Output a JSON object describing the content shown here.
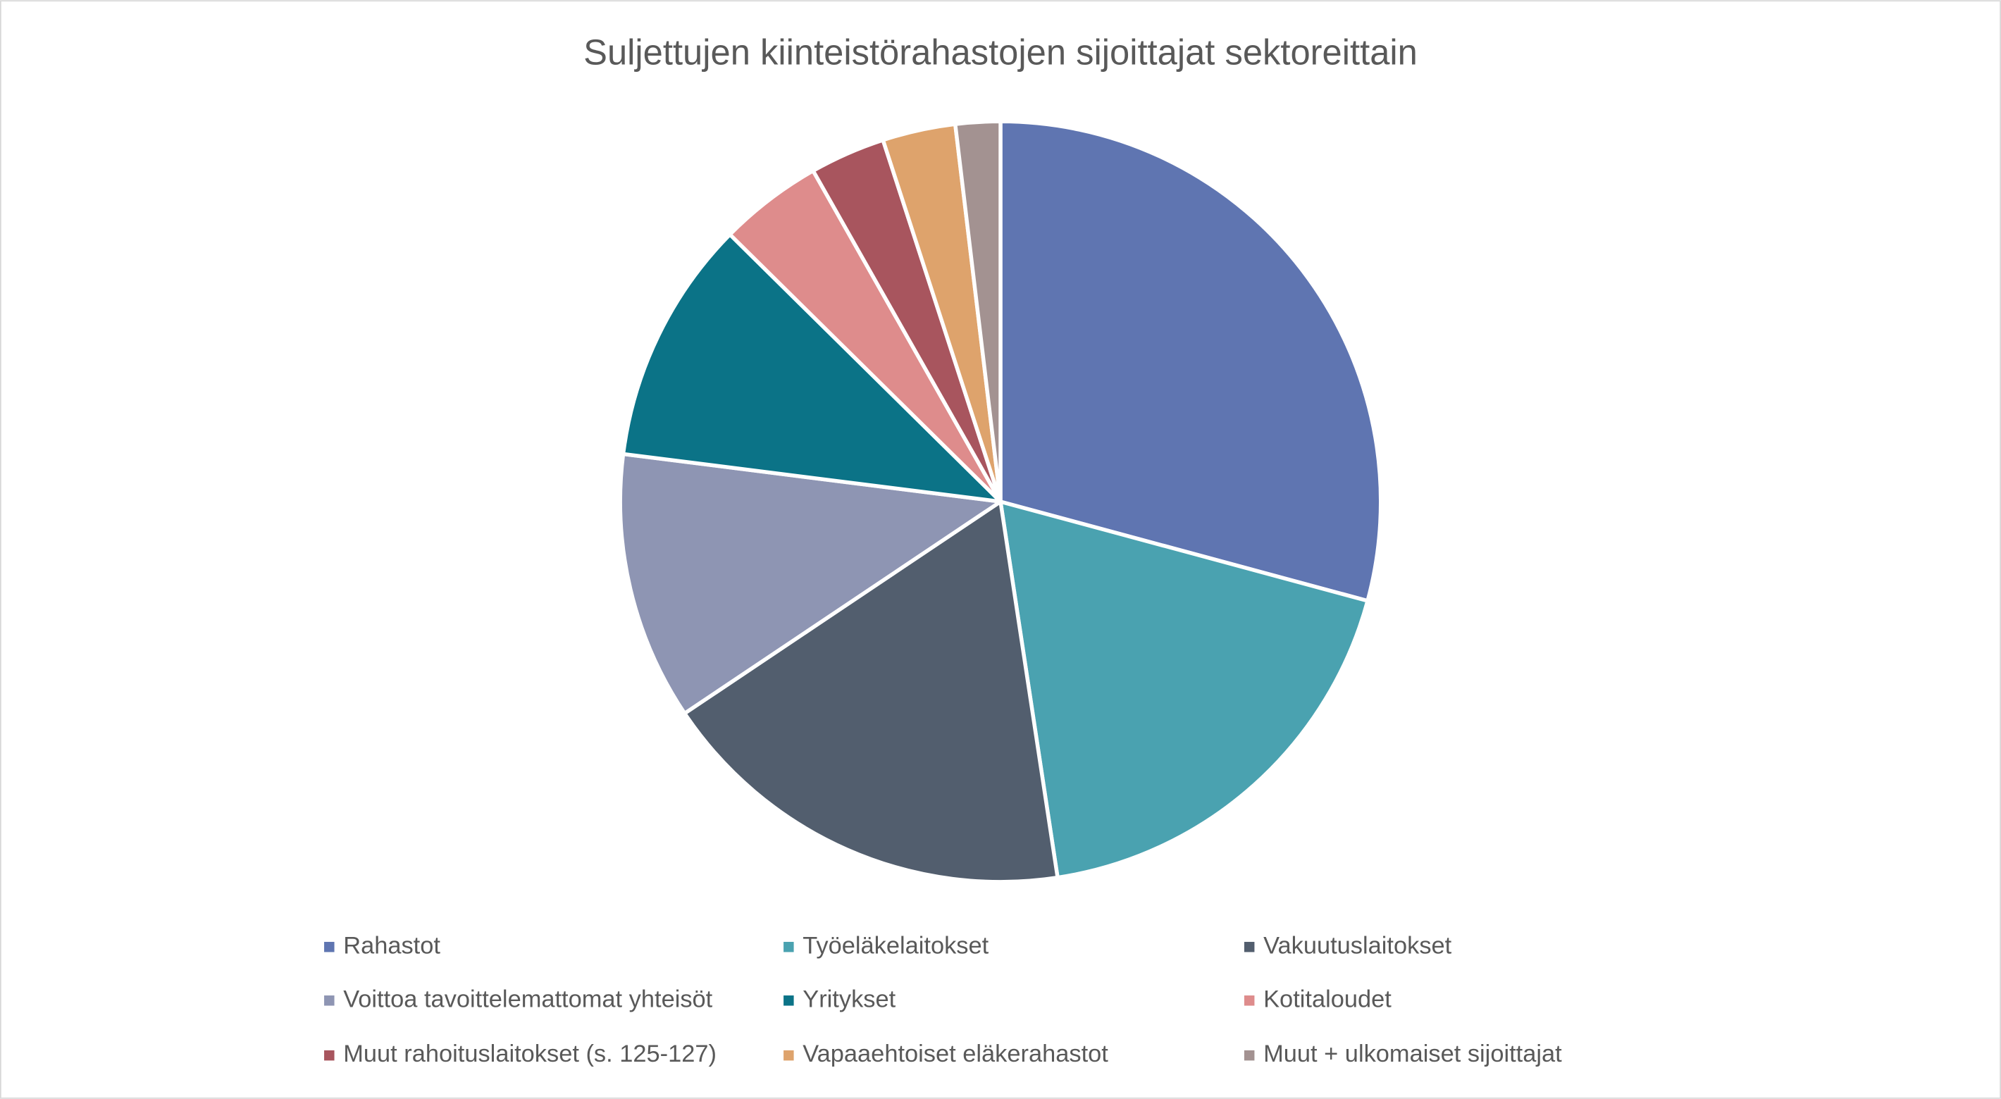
{
  "chart_data": {
    "type": "pie",
    "title": "Suljettujen kiinteistörahastojen sijoittajat sektoreittain",
    "categories": [
      "Rahastot",
      "Työeläkelaitokset",
      "Vakuutuslaitokset",
      "Voittoa tavoittelemattomat yhteisöt",
      "Yritykset",
      "Kotitaloudet",
      "Muut rahoituslaitokset (s. 125-127)",
      "Vapaaehtoiset eläkerahastot",
      "Muut + ulkomaiset sijoittajat"
    ],
    "values": [
      29.2,
      18.4,
      18.0,
      11.4,
      10.4,
      4.4,
      3.2,
      3.1,
      1.9
    ],
    "colors": [
      "#5f75b1",
      "#4aa2b0",
      "#525e6e",
      "#8e95b3",
      "#0b7387",
      "#de8c8c",
      "#a8555e",
      "#dea36c",
      "#a39291"
    ],
    "legend": "bottom"
  }
}
